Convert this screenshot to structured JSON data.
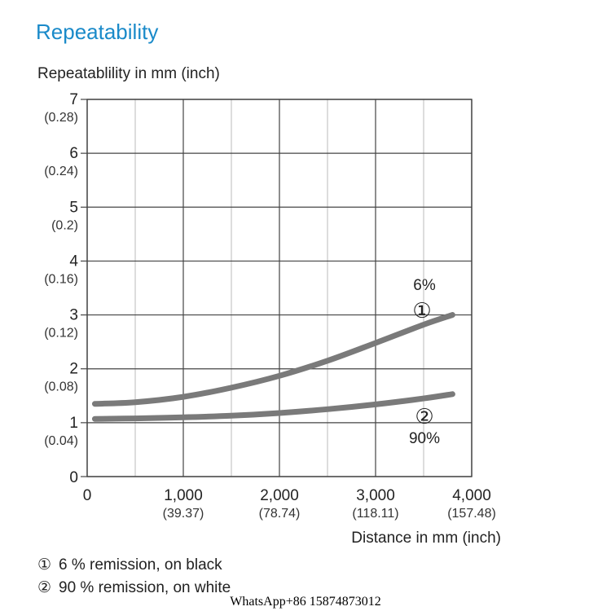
{
  "title": "Repeatability",
  "chart_data": {
    "type": "line",
    "ylabel": "Repeatablility in mm (inch)",
    "xlabel": "Distance in mm (inch)",
    "xlim": [
      0,
      4000
    ],
    "ylim": [
      0,
      7
    ],
    "x_ticks": [
      {
        "value": 0,
        "label": "0",
        "sub": ""
      },
      {
        "value": 1000,
        "label": "1,000",
        "sub": "(39.37)"
      },
      {
        "value": 2000,
        "label": "2,000",
        "sub": "(78.74)"
      },
      {
        "value": 3000,
        "label": "3,000",
        "sub": "(118.11)"
      },
      {
        "value": 4000,
        "label": "4,000",
        "sub": "(157.48)"
      }
    ],
    "y_ticks": [
      {
        "value": 0,
        "label": "0",
        "sub": ""
      },
      {
        "value": 1,
        "label": "1",
        "sub": "(0.04)"
      },
      {
        "value": 2,
        "label": "2",
        "sub": "(0.08)"
      },
      {
        "value": 3,
        "label": "3",
        "sub": "(0.12)"
      },
      {
        "value": 4,
        "label": "4",
        "sub": "(0.16)"
      },
      {
        "value": 5,
        "label": "5",
        "sub": "(0.2)"
      },
      {
        "value": 6,
        "label": "6",
        "sub": "(0.24)"
      },
      {
        "value": 7,
        "label": "7",
        "sub": "(0.28)"
      }
    ],
    "grid": true,
    "series": [
      {
        "marker": "①",
        "label": "6%",
        "color": "#7a7a7a",
        "x": [
          80,
          500,
          1000,
          1500,
          2000,
          2500,
          3000,
          3500,
          3800
        ],
        "y": [
          1.35,
          1.38,
          1.48,
          1.65,
          1.87,
          2.15,
          2.48,
          2.82,
          3.0
        ]
      },
      {
        "marker": "②",
        "label": "90%",
        "color": "#7a7a7a",
        "x": [
          80,
          500,
          1000,
          1500,
          2000,
          2500,
          3000,
          3500,
          3800
        ],
        "y": [
          1.07,
          1.08,
          1.1,
          1.13,
          1.18,
          1.25,
          1.34,
          1.45,
          1.53
        ]
      }
    ]
  },
  "legend": [
    {
      "marker": "①",
      "text": "6 % remission, on black"
    },
    {
      "marker": "②",
      "text": "90 % remission, on white"
    }
  ],
  "watermark": "WhatsApp+86 15874873012"
}
